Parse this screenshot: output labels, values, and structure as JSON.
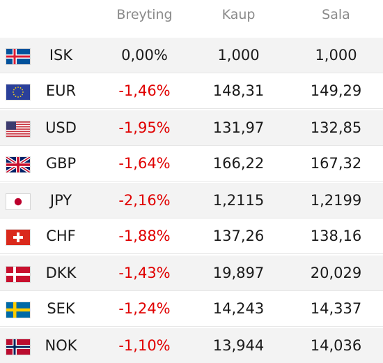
{
  "header": {
    "change_label": "Breyting",
    "buy_label": "Kaup",
    "sell_label": "Sala"
  },
  "colors": {
    "negative": "#e00000",
    "neutral": "#1a1a1a",
    "header_text": "#8a8a8a",
    "stripe": "#f3f3f3"
  },
  "rows": [
    {
      "code": "ISK",
      "flag_icon": "iceland-flag-icon",
      "change": "0,00%",
      "buy": "1,000",
      "sell": "1,000"
    },
    {
      "code": "EUR",
      "flag_icon": "eu-flag-icon",
      "change": "-1,46%",
      "buy": "148,31",
      "sell": "149,29"
    },
    {
      "code": "USD",
      "flag_icon": "us-flag-icon",
      "change": "-1,95%",
      "buy": "131,97",
      "sell": "132,85"
    },
    {
      "code": "GBP",
      "flag_icon": "uk-flag-icon",
      "change": "-1,64%",
      "buy": "166,22",
      "sell": "167,32"
    },
    {
      "code": "JPY",
      "flag_icon": "japan-flag-icon",
      "change": "-2,16%",
      "buy": "1,2115",
      "sell": "1,2199"
    },
    {
      "code": "CHF",
      "flag_icon": "switzerland-flag-icon",
      "change": "-1,88%",
      "buy": "137,26",
      "sell": "138,16"
    },
    {
      "code": "DKK",
      "flag_icon": "denmark-flag-icon",
      "change": "-1,43%",
      "buy": "19,897",
      "sell": "20,029"
    },
    {
      "code": "SEK",
      "flag_icon": "sweden-flag-icon",
      "change": "-1,24%",
      "buy": "14,243",
      "sell": "14,337"
    },
    {
      "code": "NOK",
      "flag_icon": "norway-flag-icon",
      "change": "-1,10%",
      "buy": "13,944",
      "sell": "14,036"
    }
  ]
}
